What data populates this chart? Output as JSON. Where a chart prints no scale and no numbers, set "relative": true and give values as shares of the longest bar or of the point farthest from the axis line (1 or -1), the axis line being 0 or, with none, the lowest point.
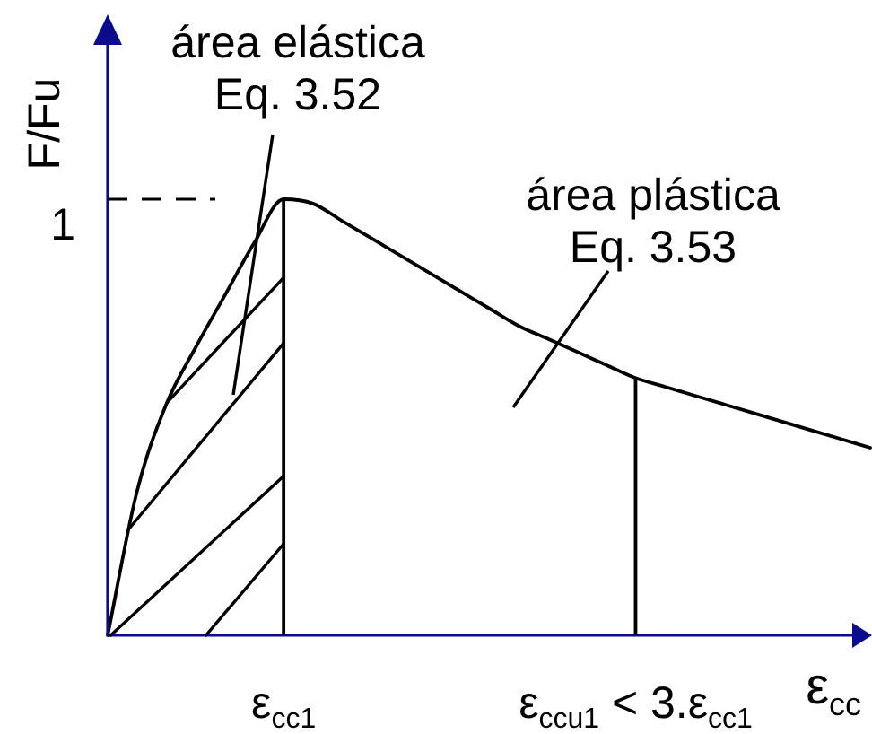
{
  "chart_data": {
    "type": "line",
    "relative": true,
    "ylabel": "F/Fu",
    "xlabel": "ε$_{cc}$",
    "categories": [
      null,
      null,
      null,
      null,
      null,
      null,
      "ε$_{cc1}$",
      null,
      null,
      null,
      null,
      null,
      null,
      null,
      null,
      null,
      null,
      null,
      "ε$_{ccu1}$ < 3.ε$_{cc1}$",
      null,
      null,
      null,
      null,
      null,
      null,
      null,
      null
    ],
    "values": [
      0,
      0.33,
      0.53,
      0.66,
      0.78,
      0.9,
      1,
      0.99,
      0.95,
      0.91,
      0.87,
      0.83,
      0.79,
      0.75,
      0.71,
      0.68,
      0.65,
      0.62,
      0.59,
      0.57,
      0.55,
      0.53,
      0.51,
      0.49,
      0.47,
      0.45,
      0.43
    ],
    "color": "#000000",
    "marker": "none",
    "ref_lines": [
      {
        "axis": "y",
        "value": 1,
        "label": "1",
        "line_style": "dashed",
        "color": "#000000"
      },
      {
        "axis": "x",
        "value": "ε$_{cc1}$",
        "color": "#000000"
      },
      {
        "axis": "x",
        "value": "ε$_{ccu1}$ < 3.ε$_{cc1}$",
        "color": "#000000"
      }
    ],
    "annotations": [
      "área elástica\nEq. 3.52",
      "área plástica\nEq. 3.53"
    ]
  }
}
